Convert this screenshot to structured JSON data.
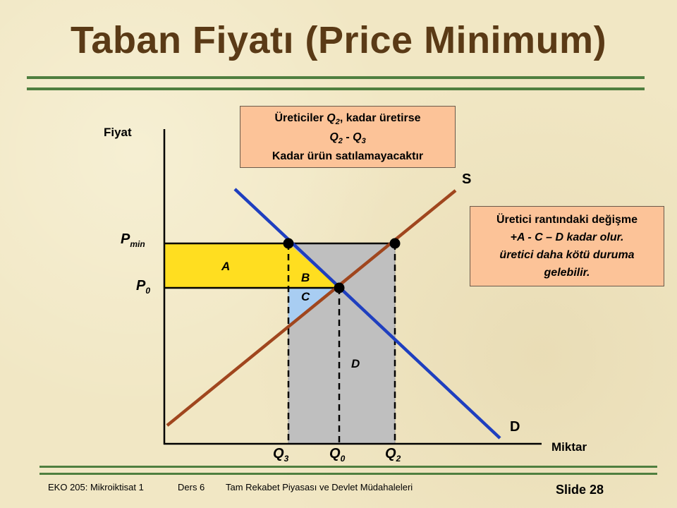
{
  "title": "Taban Fiyatı (Price Minimum)",
  "axes": {
    "y_label": "Fiyat",
    "x_label": "Miktar"
  },
  "price_labels": {
    "pmin_main": "P",
    "pmin_sub": "min",
    "p0_main": "P",
    "p0_sub": "0"
  },
  "quantity_labels": {
    "q3_main": "Q",
    "q3_sub": "3",
    "q0_main": "Q",
    "q0_sub": "0",
    "q2_main": "Q",
    "q2_sub": "2"
  },
  "curve_labels": {
    "supply": "S",
    "demand": "D"
  },
  "area_labels": {
    "a": "A",
    "b": "B",
    "c": "C",
    "d": "D"
  },
  "callout_top": {
    "line1_pre": "Üreticiler ",
    "line1_q": "Q",
    "line1_sub": "2",
    "line1_post": ", kadar üretirse",
    "line2_q1": "Q",
    "line2_sub1": "2",
    "line2_mid": " - ",
    "line2_q2": "Q",
    "line2_sub2": "3",
    "line3": "Kadar ürün satılamayacaktır"
  },
  "callout_right": {
    "line1": "Üretici rantındaki değişme",
    "line2": "+A -  C – D  kadar olur.",
    "line3": "üretici daha kötü duruma",
    "line4": "gelebilir."
  },
  "colors": {
    "supply": "#a0461e",
    "demand": "#1f3fbf",
    "area_a_b": "#ffde20",
    "area_c": "#a8cdf2",
    "area_d": "#bfbfbf",
    "title": "#5a3a16",
    "rule": "#4f7f3f",
    "callout_bg": "#fcc398"
  },
  "footer": {
    "course": "EKO 205: Mikroiktisat 1",
    "lesson": "Ders 6",
    "topic": "Tam Rekabet Piyasası ve Devlet Müdahaleleri",
    "slide": "Slide 28"
  }
}
